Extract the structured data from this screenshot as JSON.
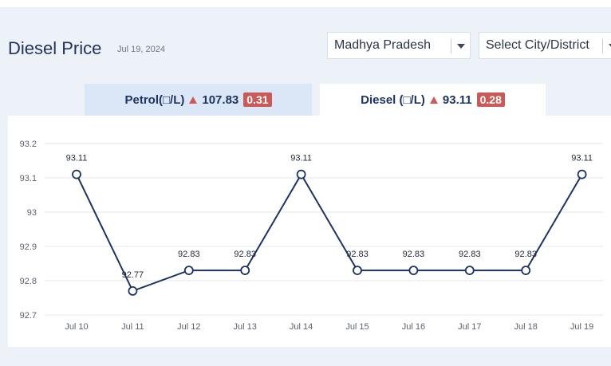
{
  "header": {
    "title": "Diesel Price",
    "date": "Jul 19, 2024"
  },
  "filters": {
    "state_value": "Madhya Pradesh",
    "city_placeholder": "Select City/District"
  },
  "tabs": [
    {
      "label": "Petrol(□/L)",
      "price": "107.83",
      "change": "0.31",
      "trend": "up"
    },
    {
      "label": "Diesel (□/L)",
      "price": "93.11",
      "change": "0.28",
      "trend": "up",
      "active": true
    }
  ],
  "colors": {
    "accent": "#1e3460",
    "up_badge": "#c95a58",
    "active_tab": "#ffffff",
    "inactive_tab": "#dbe6f6"
  },
  "chart_data": {
    "type": "line",
    "categories": [
      "Jul 10",
      "Jul 11",
      "Jul 12",
      "Jul 13",
      "Jul 14",
      "Jul 15",
      "Jul 16",
      "Jul 17",
      "Jul 18",
      "Jul 19"
    ],
    "values": [
      93.11,
      92.77,
      92.83,
      92.83,
      93.11,
      92.83,
      92.83,
      92.83,
      92.83,
      93.11
    ],
    "data_labels": [
      "93.11",
      "92.77",
      "92.83",
      "92.83",
      "93.11",
      "92.83",
      "92.83",
      "92.83",
      "92.83",
      "93.11"
    ],
    "y_ticks": [
      "92.7",
      "92.8",
      "92.9",
      "93",
      "93.1",
      "93.2"
    ],
    "ylim": [
      92.7,
      93.2
    ],
    "grid": true,
    "line_color": "#1e3460",
    "title": "",
    "xlabel": "",
    "ylabel": ""
  }
}
